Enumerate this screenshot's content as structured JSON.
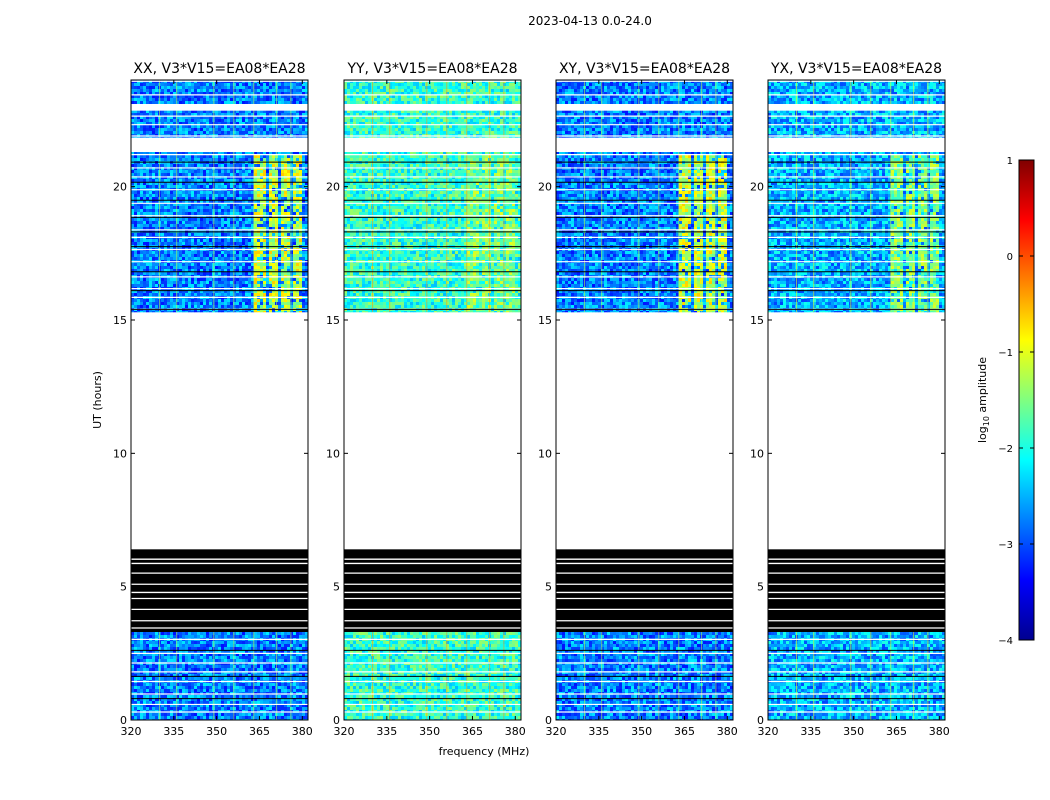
{
  "figure": {
    "title": "2023-04-13 0.0-24.0",
    "xlabel": "frequency (MHz)",
    "ylabel": "UT (hours)"
  },
  "chart_data": {
    "type": "heatmap",
    "title": "2023-04-13 0.0-24.0",
    "xlim": [
      320,
      382
    ],
    "ylim": [
      0,
      24
    ],
    "xticks": [
      320,
      335,
      350,
      365,
      380
    ],
    "xtick_labels": [
      "320",
      "335",
      "350",
      "365",
      "380"
    ],
    "yticks": [
      0,
      5,
      10,
      15,
      20
    ],
    "ytick_labels": [
      "0",
      "5",
      "10",
      "15",
      "20"
    ],
    "xlabel": "frequency (MHz)",
    "ylabel": "UT (hours)",
    "panels": [
      {
        "title": "XX, V3*V15=EA08*EA28",
        "level": 0.25,
        "rfi": 0.85
      },
      {
        "title": "YY, V3*V15=EA08*EA28",
        "level": 0.42,
        "rfi": 0.75
      },
      {
        "title": "XY, V3*V15=EA08*EA28",
        "level": 0.25,
        "rfi": 0.85
      },
      {
        "title": "YX, V3*V15=EA08*EA28",
        "level": 0.3,
        "rfi": 0.75
      }
    ],
    "data_ranges_hours": [
      {
        "start": 0.0,
        "end": 3.3,
        "kind": "data"
      },
      {
        "start": 3.3,
        "end": 6.4,
        "kind": "black"
      },
      {
        "start": 6.4,
        "end": 15.3,
        "kind": "blank"
      },
      {
        "start": 15.3,
        "end": 21.3,
        "kind": "data"
      },
      {
        "start": 21.3,
        "end": 21.85,
        "kind": "blank"
      },
      {
        "start": 21.85,
        "end": 24.0,
        "kind": "data"
      }
    ],
    "rfi_band_mhz": [
      363,
      380
    ],
    "colorbar": {
      "label_prefix": "log",
      "label_sub": "10",
      "label_suffix": " amplitude",
      "range": [
        -4,
        1
      ],
      "ticks": [
        1,
        0,
        -1,
        -2,
        -3,
        -4
      ],
      "tick_labels": [
        "1",
        "0",
        "−1",
        "−2",
        "−3",
        "−4"
      ],
      "colormap": "jet"
    }
  }
}
